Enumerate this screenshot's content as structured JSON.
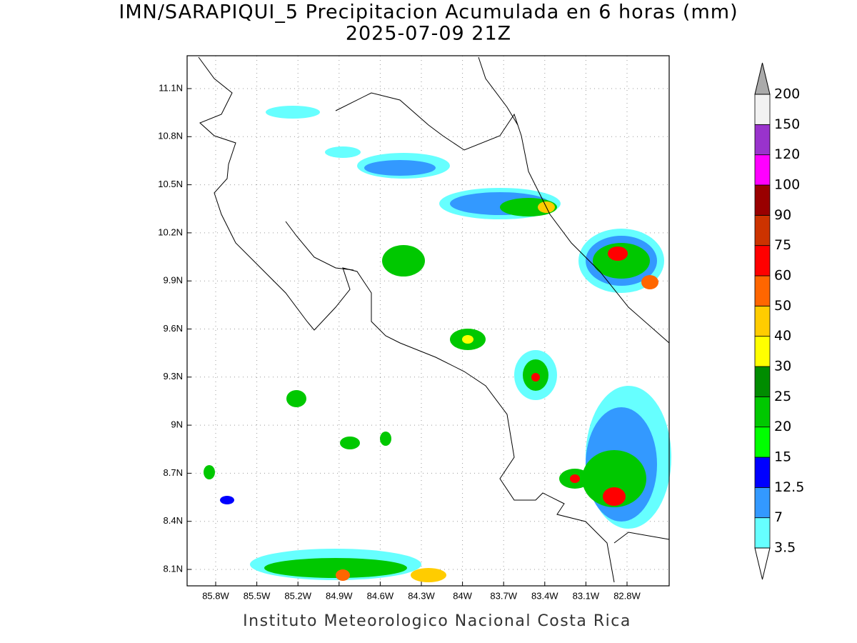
{
  "title": "IMN/SARAPIQUI_5 Precipitacion Acumulada en 6 horas (mm)",
  "subtitle": "2025-07-09 21Z",
  "map": {
    "lat_labels": [
      "11.1N",
      "10.8N",
      "10.5N",
      "10.2N",
      "9.9N",
      "9.6N",
      "9.3N",
      "9N",
      "8.7N",
      "8.4N",
      "8.1N"
    ],
    "lon_labels": [
      "85.8W",
      "85.5W",
      "85.2W",
      "84.9W",
      "84.6W",
      "84.3W",
      "84W",
      "83.7W",
      "83.4W",
      "83.1W",
      "82.8W"
    ],
    "grid": true
  },
  "colorbar": {
    "levels": [
      3.5,
      7,
      12.5,
      15,
      20,
      25,
      30,
      40,
      50,
      60,
      75,
      90,
      100,
      120,
      150,
      200
    ],
    "colors": [
      "#66ffff",
      "#3399ff",
      "#0000ff",
      "#00ff00",
      "#00c800",
      "#008c00",
      "#ffff00",
      "#ffcc00",
      "#ff6600",
      "#ff0000",
      "#cc3300",
      "#990000",
      "#ff00ff",
      "#9933cc",
      "#f2f2f2"
    ],
    "over_color": "#aaaaaa",
    "under_color": "#ffffff"
  },
  "footer": "Instituto Meteorologico Nacional Costa Rica"
}
